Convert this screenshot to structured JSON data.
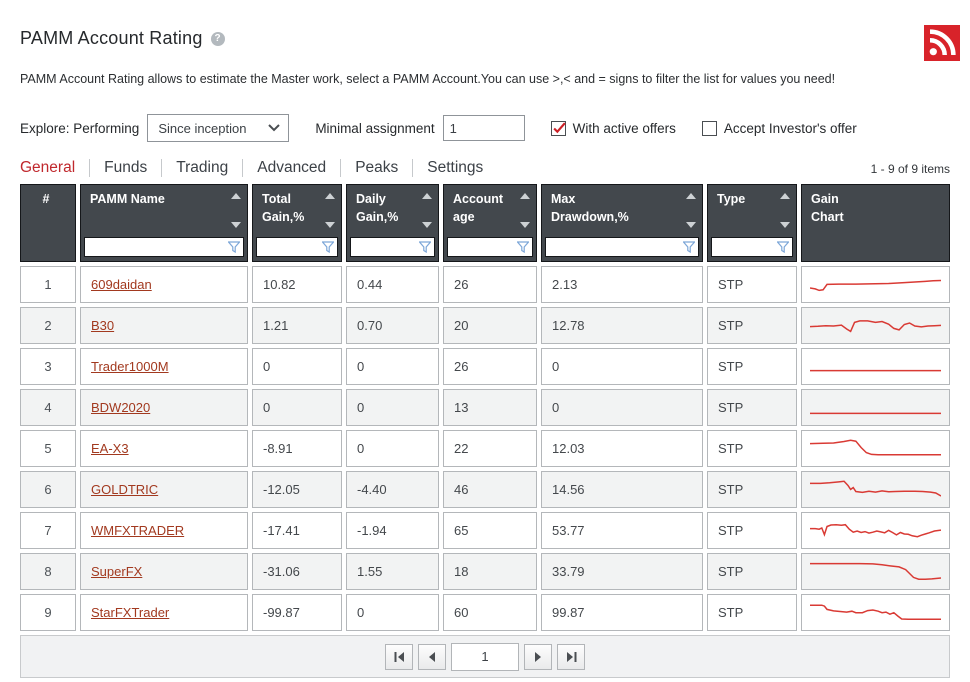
{
  "header": {
    "title": "PAMM Account Rating",
    "help_icon": "?",
    "rss_color": "#d8232a"
  },
  "description": "PAMM Account Rating allows to estimate the Master work, select a PAMM Account.You can use >,< and = signs to filter the list for values you need!",
  "controls": {
    "explore_label": "Explore: Performing",
    "period_select_value": "Since inception",
    "minimal_assignment_label": "Minimal assignment",
    "minimal_assignment_value": "1",
    "with_active_offers": {
      "label": "With active offers",
      "checked": true
    },
    "accept_investors_offer": {
      "label": "Accept Investor's offer",
      "checked": false
    }
  },
  "tabs": [
    {
      "label": "General",
      "active": true
    },
    {
      "label": "Funds",
      "active": false
    },
    {
      "label": "Trading",
      "active": false
    },
    {
      "label": "Advanced",
      "active": false
    },
    {
      "label": "Peaks",
      "active": false
    },
    {
      "label": "Settings",
      "active": false
    }
  ],
  "items_counter": "1 - 9 of 9 items",
  "table": {
    "columns": [
      {
        "key": "num",
        "label": "#",
        "sortable": false,
        "filter": false,
        "center": true
      },
      {
        "key": "name",
        "label": "PAMM Name",
        "sortable": true,
        "filter": true
      },
      {
        "key": "total_gain",
        "label": "Total\nGain,%",
        "sortable": true,
        "filter": true
      },
      {
        "key": "daily_gain",
        "label": "Daily\nGain,%",
        "sortable": true,
        "filter": true
      },
      {
        "key": "account_age",
        "label": "Account\nage",
        "sortable": true,
        "filter": true
      },
      {
        "key": "max_drawdown",
        "label": "Max\nDrawdown,%",
        "sortable": true,
        "filter": true
      },
      {
        "key": "type",
        "label": "Type",
        "sortable": true,
        "filter": true
      },
      {
        "key": "gain_chart",
        "label": "Gain\nChart",
        "sortable": false,
        "filter": false
      }
    ],
    "rows": [
      {
        "num": "1",
        "name": "609daidan",
        "total_gain": "10.82",
        "daily_gain": "0.44",
        "account_age": "26",
        "max_drawdown": "2.13",
        "type": "STP",
        "sparkline": [
          [
            0,
            60
          ],
          [
            4,
            63
          ],
          [
            7,
            68
          ],
          [
            10,
            66
          ],
          [
            13,
            48
          ],
          [
            22,
            47
          ],
          [
            35,
            47
          ],
          [
            50,
            46
          ],
          [
            60,
            45
          ],
          [
            72,
            42
          ],
          [
            80,
            40
          ],
          [
            88,
            38
          ],
          [
            94,
            36
          ],
          [
            100,
            35
          ]
        ]
      },
      {
        "num": "2",
        "name": "B30",
        "total_gain": "1.21",
        "daily_gain": "0.70",
        "account_age": "20",
        "max_drawdown": "12.78",
        "type": "STP",
        "sparkline": [
          [
            0,
            52
          ],
          [
            6,
            51
          ],
          [
            12,
            49
          ],
          [
            18,
            50
          ],
          [
            24,
            47
          ],
          [
            28,
            60
          ],
          [
            31,
            68
          ],
          [
            34,
            38
          ],
          [
            38,
            33
          ],
          [
            44,
            33
          ],
          [
            50,
            38
          ],
          [
            55,
            35
          ],
          [
            60,
            44
          ],
          [
            64,
            58
          ],
          [
            68,
            63
          ],
          [
            72,
            45
          ],
          [
            76,
            40
          ],
          [
            80,
            50
          ],
          [
            85,
            53
          ],
          [
            90,
            50
          ],
          [
            95,
            49
          ],
          [
            100,
            48
          ]
        ]
      },
      {
        "num": "3",
        "name": "Trader1000M",
        "total_gain": "0",
        "daily_gain": "0",
        "account_age": "26",
        "max_drawdown": "0",
        "type": "STP",
        "sparkline": [
          [
            0,
            62
          ],
          [
            100,
            62
          ]
        ]
      },
      {
        "num": "4",
        "name": "BDW2020",
        "total_gain": "0",
        "daily_gain": "0",
        "account_age": "13",
        "max_drawdown": "0",
        "type": "STP",
        "sparkline": [
          [
            0,
            68
          ],
          [
            100,
            68
          ]
        ]
      },
      {
        "num": "5",
        "name": "EA-X3",
        "total_gain": "-8.91",
        "daily_gain": "0",
        "account_age": "22",
        "max_drawdown": "12.03",
        "type": "STP",
        "sparkline": [
          [
            0,
            32
          ],
          [
            10,
            31
          ],
          [
            18,
            30
          ],
          [
            26,
            25
          ],
          [
            31,
            21
          ],
          [
            35,
            24
          ],
          [
            39,
            45
          ],
          [
            43,
            62
          ],
          [
            47,
            68
          ],
          [
            52,
            69
          ],
          [
            100,
            69
          ]
        ]
      },
      {
        "num": "6",
        "name": "GOLDTRIC",
        "total_gain": "-12.05",
        "daily_gain": "-4.40",
        "account_age": "46",
        "max_drawdown": "14.56",
        "type": "STP",
        "sparkline": [
          [
            0,
            28
          ],
          [
            8,
            28
          ],
          [
            15,
            26
          ],
          [
            22,
            23
          ],
          [
            26,
            21
          ],
          [
            29,
            35
          ],
          [
            31,
            48
          ],
          [
            33,
            42
          ],
          [
            35,
            55
          ],
          [
            40,
            58
          ],
          [
            45,
            54
          ],
          [
            50,
            57
          ],
          [
            55,
            53
          ],
          [
            60,
            56
          ],
          [
            65,
            55
          ],
          [
            72,
            54
          ],
          [
            80,
            54
          ],
          [
            86,
            55
          ],
          [
            92,
            57
          ],
          [
            96,
            60
          ],
          [
            100,
            70
          ]
        ]
      },
      {
        "num": "7",
        "name": "WMFXTRADER",
        "total_gain": "-17.41",
        "daily_gain": "-1.94",
        "account_age": "65",
        "max_drawdown": "53.77",
        "type": "STP",
        "sparkline": [
          [
            0,
            42
          ],
          [
            4,
            42
          ],
          [
            7,
            44
          ],
          [
            9,
            40
          ],
          [
            11,
            62
          ],
          [
            13,
            35
          ],
          [
            16,
            30
          ],
          [
            20,
            29
          ],
          [
            24,
            31
          ],
          [
            27,
            29
          ],
          [
            30,
            44
          ],
          [
            33,
            54
          ],
          [
            36,
            50
          ],
          [
            39,
            55
          ],
          [
            42,
            52
          ],
          [
            45,
            57
          ],
          [
            48,
            54
          ],
          [
            51,
            50
          ],
          [
            54,
            53
          ],
          [
            57,
            56
          ],
          [
            60,
            48
          ],
          [
            63,
            55
          ],
          [
            66,
            63
          ],
          [
            69,
            55
          ],
          [
            72,
            60
          ],
          [
            75,
            61
          ],
          [
            78,
            66
          ],
          [
            82,
            69
          ],
          [
            85,
            64
          ],
          [
            88,
            60
          ],
          [
            91,
            56
          ],
          [
            95,
            50
          ],
          [
            100,
            47
          ]
        ]
      },
      {
        "num": "8",
        "name": "SuperFX",
        "total_gain": "-31.06",
        "daily_gain": "1.55",
        "account_age": "18",
        "max_drawdown": "33.79",
        "type": "STP",
        "sparkline": [
          [
            0,
            22
          ],
          [
            38,
            22
          ],
          [
            48,
            23
          ],
          [
            55,
            26
          ],
          [
            62,
            30
          ],
          [
            68,
            33
          ],
          [
            73,
            42
          ],
          [
            76,
            55
          ],
          [
            79,
            68
          ],
          [
            83,
            74
          ],
          [
            88,
            74
          ],
          [
            93,
            73
          ],
          [
            100,
            70
          ]
        ]
      },
      {
        "num": "9",
        "name": "StarFXTrader",
        "total_gain": "-99.87",
        "daily_gain": "0",
        "account_age": "60",
        "max_drawdown": "99.87",
        "type": "STP",
        "sparkline": [
          [
            0,
            24
          ],
          [
            9,
            24
          ],
          [
            11,
            27
          ],
          [
            13,
            38
          ],
          [
            18,
            43
          ],
          [
            23,
            45
          ],
          [
            28,
            47
          ],
          [
            32,
            44
          ],
          [
            35,
            49
          ],
          [
            40,
            49
          ],
          [
            44,
            42
          ],
          [
            48,
            40
          ],
          [
            52,
            44
          ],
          [
            55,
            49
          ],
          [
            58,
            47
          ],
          [
            61,
            54
          ],
          [
            64,
            49
          ],
          [
            67,
            60
          ],
          [
            70,
            70
          ],
          [
            75,
            71
          ],
          [
            100,
            71
          ]
        ]
      }
    ]
  },
  "pagination": {
    "page": "1"
  },
  "colors": {
    "header_bg": "#43484d",
    "row_alt_bg": "#f2f3f3",
    "link": "#a2391f",
    "active_tab": "#c0282d",
    "sparkline": "#d93a34",
    "check": "#cc2026",
    "funnel": "#7da7d8"
  }
}
